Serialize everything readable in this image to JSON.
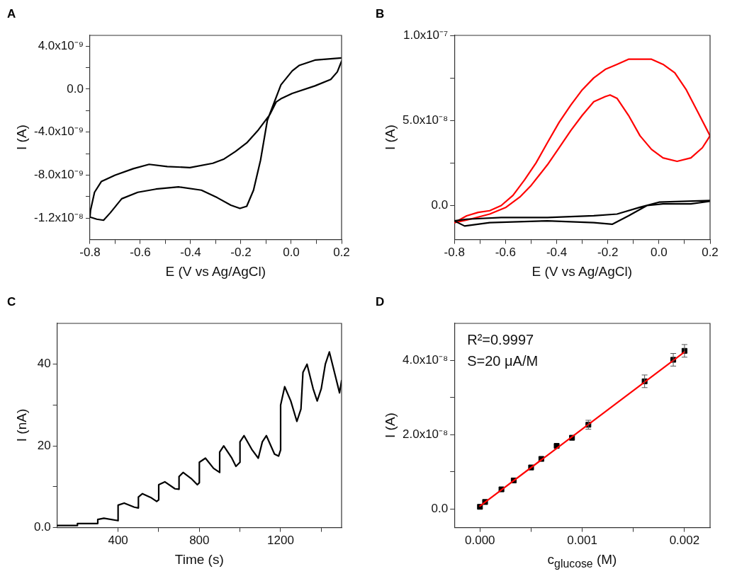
{
  "chart_data": [
    {
      "type": "line",
      "title": "A",
      "xlabel": "E (V vs Ag/AgCl)",
      "ylabel": "I (A)",
      "xlim": [
        -0.8,
        0.2
      ],
      "ylim": [
        -1.4e-08,
        5e-09
      ],
      "xticks": [
        -0.8,
        {
          "value": -0.7,
          "label": null
        },
        -0.6,
        {
          "value": -0.5,
          "label": null
        },
        -0.4,
        {
          "value": -0.3,
          "label": null
        },
        -0.2,
        {
          "value": -0.1,
          "label": null
        },
        {
          "value": 0,
          "label": "0.0"
        },
        {
          "value": 0.1,
          "label": null
        },
        0.2
      ],
      "yticks": [
        {
          "value": 4e-09,
          "label": "4.0x10⁻⁹"
        },
        {
          "value": 2e-09,
          "label": null
        },
        {
          "value": 0,
          "label": "0.0"
        },
        {
          "value": -2e-09,
          "label": null
        },
        {
          "value": -4e-09,
          "label": "-4.0x10⁻⁹"
        },
        {
          "value": -6e-09,
          "label": null
        },
        {
          "value": -8e-09,
          "label": "-8.0x10⁻⁹"
        },
        {
          "value": -1e-08,
          "label": null
        },
        {
          "value": -1.2e-08,
          "label": "-1.2x10⁻⁸"
        }
      ],
      "series": [
        {
          "color": "#000000",
          "x": [
            0.2,
            0.094,
            0.031,
            0.004,
            -0.041,
            -0.095,
            -0.122,
            -0.15,
            -0.177,
            -0.204,
            -0.24,
            -0.294,
            -0.357,
            -0.448,
            -0.538,
            -0.61,
            -0.674,
            -0.719,
            -0.746,
            -0.773,
            -0.8,
            -0.798,
            -0.782,
            -0.755,
            -0.7,
            -0.628,
            -0.565,
            -0.493,
            -0.403,
            -0.312,
            -0.267,
            -0.222,
            -0.177,
            -0.131,
            -0.086,
            -0.06,
            -0.041,
            0.004,
            0.094,
            0.157,
            0.183,
            0.2
          ],
          "values": [
            2.9e-09,
            2.7e-09,
            2.2e-09,
            1.7e-09,
            4e-10,
            -2.9e-09,
            -6.6e-09,
            -9.4e-09,
            -1.09e-08,
            -1.11e-08,
            -1.08e-08,
            -1.01e-08,
            -9.4e-09,
            -9.1e-09,
            -9.3e-09,
            -9.6e-09,
            -1.02e-08,
            -1.15e-08,
            -1.22e-08,
            -1.21e-08,
            -1.19e-08,
            -1.13e-08,
            -9.6e-09,
            -8.6e-09,
            -8e-09,
            -7.4e-09,
            -7e-09,
            -7.2e-09,
            -7.3e-09,
            -6.9e-09,
            -6.5e-09,
            -5.8e-09,
            -5e-09,
            -3.8e-09,
            -2.4e-09,
            -1.2e-09,
            -9e-10,
            -4e-10,
            3e-10,
            9e-10,
            1.6e-09,
            2.6e-09
          ]
        }
      ]
    },
    {
      "type": "line",
      "title": "B",
      "xlabel": "E (V vs Ag/AgCl)",
      "ylabel": "I (A)",
      "xlim": [
        -0.8,
        0.2
      ],
      "ylim": [
        -2e-08,
        1e-07
      ],
      "xticks": [
        -0.8,
        {
          "value": -0.7,
          "label": null
        },
        -0.6,
        {
          "value": -0.5,
          "label": null
        },
        -0.4,
        {
          "value": -0.3,
          "label": null
        },
        -0.2,
        {
          "value": -0.1,
          "label": null
        },
        {
          "value": 0,
          "label": "0.0"
        },
        {
          "value": 0.1,
          "label": null
        },
        0.2
      ],
      "yticks": [
        {
          "value": 1e-07,
          "label": "1.0x10⁻⁷"
        },
        {
          "value": 7.5e-08,
          "label": null
        },
        {
          "value": 5e-08,
          "label": "5.0x10⁻⁸"
        },
        {
          "value": 2.5e-08,
          "label": null
        },
        {
          "value": 0,
          "label": "0.0"
        }
      ],
      "series": [
        {
          "color": "#000000",
          "x": [
            0.2,
            0.0,
            -0.074,
            -0.164,
            -0.255,
            -0.436,
            -0.617,
            -0.752,
            -0.8,
            -0.76,
            -0.662,
            -0.436,
            -0.255,
            -0.183,
            -0.119,
            -0.047,
            0.016,
            0.125,
            0.2
          ],
          "values": [
            3e-09,
            2e-09,
            -1e-09,
            -5e-09,
            -6e-09,
            -7e-09,
            -7e-09,
            -8e-09,
            -9e-09,
            -1.2e-08,
            -1e-08,
            -9e-09,
            -1e-08,
            -1.1e-08,
            -6e-09,
            0,
            1e-09,
            1e-09,
            2.5e-09
          ]
        },
        {
          "color": "#ff0000",
          "x": [
            -0.8,
            -0.752,
            -0.707,
            -0.662,
            -0.617,
            -0.571,
            -0.526,
            -0.481,
            -0.436,
            -0.39,
            -0.345,
            -0.3,
            -0.255,
            -0.21,
            -0.164,
            -0.119,
            -0.074,
            -0.029,
            0.016,
            0.062,
            0.107,
            0.152,
            0.2
          ],
          "values": [
            -1e-08,
            -6e-09,
            -4e-09,
            -3e-09,
            0,
            6e-09,
            1.5e-08,
            2.5e-08,
            3.7e-08,
            4.9e-08,
            5.9e-08,
            6.8e-08,
            7.5e-08,
            8e-08,
            8.3e-08,
            8.6e-08,
            8.6e-08,
            8.6e-08,
            8.3e-08,
            7.8e-08,
            6.8e-08,
            5.5e-08,
            4.1e-08
          ]
        },
        {
          "color": "#ff0000",
          "x": [
            -0.8,
            -0.752,
            -0.662,
            -0.598,
            -0.544,
            -0.499,
            -0.436,
            -0.39,
            -0.345,
            -0.3,
            -0.255,
            -0.21,
            -0.191,
            -0.164,
            -0.119,
            -0.074,
            -0.029,
            0.016,
            0.071,
            0.125,
            0.17,
            0.2
          ],
          "values": [
            -1e-08,
            -8.5e-09,
            -5e-09,
            -1e-09,
            5e-09,
            1.2e-08,
            2.4e-08,
            3.4e-08,
            4.4e-08,
            5.3e-08,
            6.1e-08,
            6.4e-08,
            6.5e-08,
            6.3e-08,
            5.3e-08,
            4.1e-08,
            3.3e-08,
            2.8e-08,
            2.6e-08,
            2.8e-08,
            3.4e-08,
            4.1e-08
          ]
        }
      ]
    },
    {
      "type": "line",
      "title": "C",
      "xlabel": "Time (s)",
      "ylabel": "I (nA)",
      "xlim": [
        100,
        1500
      ],
      "ylim": [
        0,
        50
      ],
      "xticks": [
        400,
        {
          "value": 600,
          "label": null
        },
        800,
        {
          "value": 1000,
          "label": null
        },
        1200,
        {
          "value": 1400,
          "label": null
        }
      ],
      "yticks": [
        {
          "value": 0,
          "label": "0.0"
        },
        {
          "value": 10,
          "label": null
        },
        20,
        {
          "value": 30,
          "label": null
        },
        40
      ],
      "series": [
        {
          "color": "#000000",
          "x": [
            100,
            200,
            200,
            300,
            300,
            330,
            400,
            400,
            430,
            480,
            500,
            500,
            520,
            560,
            590,
            600,
            600,
            630,
            680,
            700,
            700,
            720,
            760,
            790,
            800,
            800,
            830,
            870,
            900,
            900,
            920,
            960,
            980,
            1000,
            1000,
            1020,
            1060,
            1090,
            1110,
            1130,
            1170,
            1190,
            1200,
            1200,
            1220,
            1250,
            1280,
            1300,
            1310,
            1330,
            1360,
            1380,
            1400,
            1420,
            1440,
            1470,
            1490,
            1500
          ],
          "values": [
            0.5,
            0.5,
            1,
            1,
            2,
            2.3,
            1.7,
            5.5,
            6,
            5,
            4.8,
            7.5,
            8.3,
            7.4,
            6.4,
            6.8,
            10.5,
            11.2,
            9.5,
            9.4,
            12.5,
            13.5,
            12,
            10.5,
            11,
            16,
            17,
            14.5,
            13.5,
            18.5,
            20,
            17,
            15,
            16,
            21,
            22.5,
            19,
            17,
            21,
            22.5,
            18,
            17.5,
            19,
            30,
            34.5,
            31,
            26,
            29,
            38,
            40,
            34,
            31,
            34,
            40,
            43,
            37,
            33,
            36
          ]
        }
      ]
    },
    {
      "type": "scatter",
      "title": "D",
      "xlabel": "c$_{glucose}$ (M)",
      "ylabel": "I (A)",
      "xlim": [
        -0.00025,
        0.00225
      ],
      "ylim": [
        -5e-09,
        5e-08
      ],
      "xticks": [
        {
          "value": 0,
          "label": "0.000"
        },
        {
          "value": 0.0005,
          "label": null
        },
        {
          "value": 0.001,
          "label": "0.001"
        },
        {
          "value": 0.0015,
          "label": null
        },
        {
          "value": 0.002,
          "label": "0.002"
        }
      ],
      "yticks": [
        {
          "value": 0,
          "label": "0.0"
        },
        {
          "value": 1e-08,
          "label": null
        },
        {
          "value": 2e-08,
          "label": "2.0x10⁻⁸"
        },
        {
          "value": 3e-08,
          "label": null
        },
        {
          "value": 4e-08,
          "label": "4.0x10⁻⁸"
        }
      ],
      "annotations": [
        "R²=0.9997",
        "S=20 μA/M"
      ],
      "series": [
        {
          "type": "line",
          "color": "#ff0000",
          "x": [
            0,
            0.002
          ],
          "values": [
            8e-10,
            4.23e-08
          ]
        },
        {
          "type": "scatter",
          "marker": "square",
          "color": "#000000",
          "x": [
            0,
            5e-05,
            0.00021,
            0.00033,
            0.0005,
            0.0006,
            0.00075,
            0.0009,
            0.00106,
            0.00161,
            0.00189,
            0.002
          ],
          "values": [
            6e-10,
            1.9e-09,
            5.3e-09,
            7.7e-09,
            1.12e-08,
            1.35e-08,
            1.7e-08,
            1.92e-08,
            2.27e-08,
            3.44e-08,
            4.02e-08,
            4.26e-08
          ],
          "errors": [
            null,
            null,
            null,
            null,
            null,
            null,
            null,
            null,
            1.2e-09,
            1.7e-09,
            1.7e-09,
            1.7e-09
          ]
        }
      ]
    }
  ]
}
